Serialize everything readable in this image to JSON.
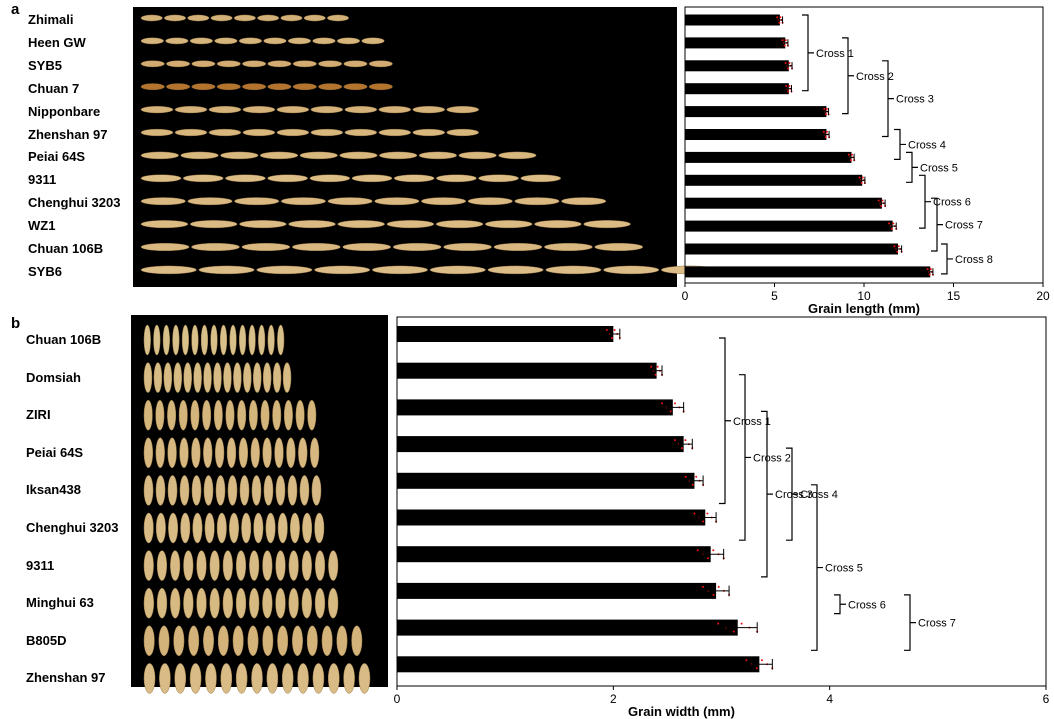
{
  "panel_a": {
    "label": "a",
    "varieties": [
      "Zhimali",
      "Heen GW",
      "SYB5",
      "Chuan 7",
      "Nipponbare",
      "Zhenshan 97",
      "Peiai 64S",
      "9311",
      "Chenghui 3203",
      "WZ1",
      "Chuan 106B",
      "SYB6"
    ],
    "grain_colors": [
      "#d2b179",
      "#d6b57d",
      "#d2ac72",
      "#b5742e",
      "#d4b27a",
      "#d8b77e",
      "#d8b87f",
      "#dcbd85",
      "#d9b882",
      "#dbba84",
      "#d9b780",
      "#dcbd88"
    ]
  },
  "panel_b": {
    "label": "b",
    "varieties": [
      "Chuan 106B",
      "Domsiah",
      "ZIRI",
      "Peiai 64S",
      "Iksan438",
      "Chenghui 3203",
      "9311",
      "Minghui 63",
      "B805D",
      "Zhenshan 97"
    ],
    "grain_colors": [
      "#d8c08a",
      "#d6bb84",
      "#d4b57c",
      "#d6b880",
      "#d7ba83",
      "#d9bc85",
      "#d8bb84",
      "#d7b982",
      "#d3b37a",
      "#d8bb85"
    ]
  },
  "chart_data": [
    {
      "type": "bar",
      "orientation": "horizontal",
      "panel": "a",
      "categories": [
        "Zhimali",
        "Heen GW",
        "SYB5",
        "Chuan 7",
        "Nipponbare",
        "Zhenshan 97",
        "Peiai 64S",
        "9311",
        "Chenghui 3203",
        "WZ1",
        "Chuan 106B",
        "SYB6"
      ],
      "values": [
        5.3,
        5.6,
        5.8,
        5.8,
        7.9,
        7.9,
        9.3,
        9.9,
        11.0,
        11.6,
        11.9,
        13.7
      ],
      "errors": [
        0.15,
        0.15,
        0.18,
        0.15,
        0.12,
        0.15,
        0.15,
        0.15,
        0.18,
        0.2,
        0.2,
        0.15
      ],
      "xlabel": "Grain length (mm)",
      "ylabel": "",
      "xlim": [
        0,
        20
      ],
      "xticks": [
        0,
        5,
        10,
        15,
        20
      ],
      "grid": false,
      "annotations": [
        {
          "label": "Cross 1",
          "from": 0,
          "to": 3
        },
        {
          "label": "Cross 2",
          "from": 1,
          "to": 4
        },
        {
          "label": "Cross 3",
          "from": 2,
          "to": 5
        },
        {
          "label": "Cross 4",
          "from": 5,
          "to": 6
        },
        {
          "label": "Cross 5",
          "from": 6,
          "to": 7
        },
        {
          "label": "Cross 6",
          "from": 7,
          "to": 9
        },
        {
          "label": "Cross 7",
          "from": 8,
          "to": 10
        },
        {
          "label": "Cross 8",
          "from": 10,
          "to": 11
        }
      ]
    },
    {
      "type": "bar",
      "orientation": "horizontal",
      "panel": "b",
      "categories": [
        "Chuan 106B",
        "Domsiah",
        "ZIRI",
        "Peiai 64S",
        "Iksan438",
        "Chenghui 3203",
        "9311",
        "Minghui 63",
        "B805D",
        "Zhenshan 97"
      ],
      "values": [
        2.0,
        2.4,
        2.55,
        2.65,
        2.75,
        2.85,
        2.9,
        2.95,
        3.15,
        3.35
      ],
      "errors": [
        0.06,
        0.05,
        0.1,
        0.08,
        0.08,
        0.1,
        0.12,
        0.12,
        0.18,
        0.12
      ],
      "xlabel": "Grain width (mm)",
      "ylabel": "",
      "xlim": [
        0,
        6
      ],
      "xticks": [
        0,
        2,
        4,
        6
      ],
      "grid": false,
      "annotations": [
        {
          "label": "Cross 1",
          "from": 0,
          "to": 5
        },
        {
          "label": "Cross 2",
          "from": 1,
          "to": 6
        },
        {
          "label": "Cross 3",
          "from": 2,
          "to": 7
        },
        {
          "label": "Cross 4",
          "from": 3,
          "to": 6
        },
        {
          "label": "Cross 5",
          "from": 4,
          "to": 9
        },
        {
          "label": "Cross 6",
          "from": 7,
          "to": 8
        },
        {
          "label": "Cross 7",
          "from": 7,
          "to": 9
        }
      ]
    }
  ]
}
